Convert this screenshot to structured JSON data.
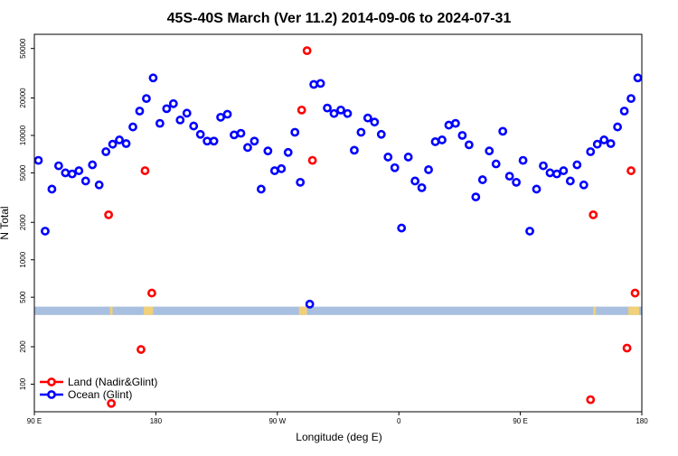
{
  "chart_data": {
    "type": "scatter",
    "title": "45S-40S March (Ver 11.2)   2014-09-06 to 2024-07-31",
    "xlabel": "Longitude (deg E)",
    "ylabel": "N Total",
    "x_ticks": [
      {
        "value": 90,
        "label": "90 E"
      },
      {
        "value": 180,
        "label": "180"
      },
      {
        "value": 270,
        "label": "90 W"
      },
      {
        "value": 360,
        "label": "0"
      },
      {
        "value": 450,
        "label": "90 E"
      },
      {
        "value": 540,
        "label": "180"
      }
    ],
    "y_scale": "log",
    "y_ticks": [
      {
        "value": 100,
        "label": "100"
      },
      {
        "value": 200,
        "label": "200"
      },
      {
        "value": 500,
        "label": "500"
      },
      {
        "value": 1000,
        "label": "1000"
      },
      {
        "value": 2000,
        "label": "2000"
      },
      {
        "value": 5000,
        "label": "5000"
      },
      {
        "value": 10000,
        "label": "10000"
      },
      {
        "value": 20000,
        "label": "20000"
      },
      {
        "value": 50000,
        "label": "50000"
      }
    ],
    "xlim": [
      90,
      540
    ],
    "ylim": [
      60,
      65000
    ],
    "legend": {
      "position": "bottom-left"
    },
    "series": [
      {
        "name": "Land (Nadir&Glint)",
        "color": "#ff0000",
        "points": [
          [
            145,
            2300
          ],
          [
            147,
            70
          ],
          [
            169,
            190
          ],
          [
            172,
            5200
          ],
          [
            177,
            540
          ],
          [
            288,
            16000
          ],
          [
            292,
            48000
          ],
          [
            296,
            6300
          ],
          [
            504,
            2300
          ],
          [
            502,
            75
          ],
          [
            529,
            195
          ],
          [
            532,
            5200
          ],
          [
            535,
            540
          ]
        ]
      },
      {
        "name": "Ocean (Glint)",
        "color": "#0000ff",
        "points": [
          [
            93,
            6300
          ],
          [
            98,
            1700
          ],
          [
            103,
            3700
          ],
          [
            108,
            5700
          ],
          [
            113,
            5000
          ],
          [
            118,
            4900
          ],
          [
            123,
            5200
          ],
          [
            128,
            4300
          ],
          [
            133,
            5800
          ],
          [
            138,
            4000
          ],
          [
            143,
            7400
          ],
          [
            148,
            8500
          ],
          [
            153,
            9200
          ],
          [
            158,
            8600
          ],
          [
            163,
            11700
          ],
          [
            168,
            15700
          ],
          [
            173,
            19800
          ],
          [
            178,
            29000
          ],
          [
            183,
            12500
          ],
          [
            188,
            16400
          ],
          [
            193,
            18000
          ],
          [
            198,
            13300
          ],
          [
            203,
            15100
          ],
          [
            208,
            11900
          ],
          [
            213,
            10200
          ],
          [
            218,
            9000
          ],
          [
            223,
            9000
          ],
          [
            228,
            14000
          ],
          [
            233,
            14800
          ],
          [
            238,
            10100
          ],
          [
            243,
            10400
          ],
          [
            248,
            8000
          ],
          [
            253,
            9000
          ],
          [
            258,
            3700
          ],
          [
            263,
            7500
          ],
          [
            268,
            5200
          ],
          [
            273,
            5400
          ],
          [
            278,
            7300
          ],
          [
            283,
            10600
          ],
          [
            287,
            4200
          ],
          [
            297,
            25700
          ],
          [
            302,
            26200
          ],
          [
            307,
            16600
          ],
          [
            312,
            15000
          ],
          [
            317,
            16000
          ],
          [
            322,
            15000
          ],
          [
            327,
            7600
          ],
          [
            332,
            10600
          ],
          [
            337,
            13800
          ],
          [
            342,
            12800
          ],
          [
            347,
            10200
          ],
          [
            352,
            6700
          ],
          [
            357,
            5500
          ],
          [
            362,
            1800
          ],
          [
            367,
            6700
          ],
          [
            372,
            4300
          ],
          [
            377,
            3800
          ],
          [
            382,
            5300
          ],
          [
            387,
            8900
          ],
          [
            392,
            9200
          ],
          [
            397,
            12100
          ],
          [
            402,
            12500
          ],
          [
            407,
            10000
          ],
          [
            412,
            8400
          ],
          [
            417,
            3200
          ],
          [
            422,
            4400
          ],
          [
            427,
            7500
          ],
          [
            432,
            5900
          ],
          [
            437,
            10800
          ],
          [
            442,
            4700
          ],
          [
            447,
            4200
          ],
          [
            452,
            6300
          ],
          [
            457,
            1700
          ],
          [
            462,
            3700
          ],
          [
            467,
            5700
          ],
          [
            472,
            5000
          ],
          [
            477,
            4900
          ],
          [
            482,
            5200
          ],
          [
            487,
            4300
          ],
          [
            492,
            5800
          ],
          [
            497,
            4000
          ],
          [
            502,
            7400
          ],
          [
            507,
            8500
          ],
          [
            512,
            9200
          ],
          [
            517,
            8600
          ],
          [
            522,
            11700
          ],
          [
            527,
            15700
          ],
          [
            532,
            19800
          ],
          [
            537,
            29000
          ],
          [
            294,
            440
          ]
        ]
      }
    ],
    "band": {
      "y_range": [
        360,
        420
      ],
      "color": "#a8bfdf",
      "highlight_color": "#f0d07a",
      "highlight_x_ranges": [
        [
          146,
          148
        ],
        [
          171,
          178
        ],
        [
          286,
          292
        ],
        [
          504,
          506
        ],
        [
          530,
          538
        ]
      ]
    }
  }
}
